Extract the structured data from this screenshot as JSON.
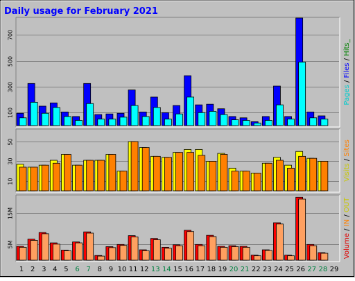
{
  "chart_data": {
    "type": "bar",
    "title": "Daily usage for February 2021",
    "colors": {
      "hits": "#00cc00",
      "files": "#0000ff",
      "pages": "#00ffff",
      "visits": "#ffff00",
      "sites": "#ff8000",
      "kbin": "#ff0000",
      "kbout": "#ffa060",
      "panel": "#c0c0c0",
      "title": "#0000ff",
      "weekend_label": "#008040"
    },
    "categories": [
      "1",
      "2",
      "3",
      "4",
      "5",
      "6",
      "7",
      "8",
      "9",
      "10",
      "11",
      "12",
      "13",
      "14",
      "15",
      "16",
      "17",
      "18",
      "19",
      "20",
      "21",
      "22",
      "23",
      "24",
      "25",
      "26",
      "27",
      "28",
      "29"
    ],
    "weekend_days": [
      "6",
      "7",
      "13",
      "14",
      "20",
      "21",
      "27",
      "28"
    ],
    "panels": [
      {
        "id": "hits",
        "ylim": [
          0,
          830
        ],
        "ticks": [
          {
            "value": 100,
            "label": "100"
          },
          {
            "value": 300,
            "label": "300"
          },
          {
            "value": 500,
            "label": "500"
          },
          {
            "value": 700,
            "label": "700"
          }
        ],
        "legend": [
          {
            "text": "Pages",
            "color": "#00cccc"
          },
          {
            "text": " / ",
            "color": "#000000"
          },
          {
            "text": "Files",
            "color": "#0000ff"
          },
          {
            "text": " / ",
            "color": "#000000"
          },
          {
            "text": "Hits_",
            "color": "#008000"
          }
        ],
        "series": [
          {
            "name": "Files",
            "color": "#0000ff",
            "values": [
              95,
              325,
              150,
              175,
              105,
              70,
              325,
              85,
              90,
              95,
              275,
              105,
              220,
              100,
              155,
              385,
              160,
              165,
              130,
              70,
              60,
              30,
              70,
              305,
              70,
              830,
              105,
              75,
              0
            ]
          },
          {
            "name": "Pages",
            "color": "#00ffff",
            "values": [
              60,
              180,
              95,
              140,
              70,
              40,
              170,
              50,
              50,
              65,
              155,
              70,
              140,
              50,
              90,
              220,
              100,
              110,
              85,
              45,
              40,
              20,
              40,
              160,
              50,
              490,
              60,
              50,
              0
            ]
          }
        ]
      },
      {
        "id": "visits",
        "ylim": [
          0,
          62
        ],
        "ticks": [
          {
            "value": 10,
            "label": "10"
          },
          {
            "value": 30,
            "label": "30"
          },
          {
            "value": 50,
            "label": "50"
          }
        ],
        "legend": [
          {
            "text": "Visits",
            "color": "#c8c800"
          },
          {
            "text": " / ",
            "color": "#000000"
          },
          {
            "text": "Sites",
            "color": "#ff8000"
          }
        ],
        "series": [
          {
            "name": "Visits",
            "color": "#ffff00",
            "values": [
              27,
              24,
              26,
              31,
              37,
              26,
              31,
              31,
              37,
              20,
              50,
              44,
              35,
              34,
              39,
              42,
              42,
              30,
              38,
              23,
              20,
              18,
              28,
              34,
              26,
              40,
              33,
              30,
              0
            ]
          },
          {
            "name": "Sites",
            "color": "#ff8000",
            "values": [
              24,
              24,
              26,
              28,
              37,
              26,
              31,
              31,
              37,
              20,
              50,
              44,
              35,
              34,
              39,
              39,
              36,
              30,
              37,
              20,
              20,
              18,
              28,
              31,
              23,
              35,
              33,
              30,
              0
            ]
          }
        ]
      },
      {
        "id": "kbytes",
        "ylim": [
          0,
          20500000
        ],
        "ticks": [
          {
            "value": 5000000,
            "label": "5M"
          },
          {
            "value": 15000000,
            "label": "15M"
          }
        ],
        "legend": [
          {
            "text": "Volume",
            "color": "#e00000"
          },
          {
            "text": " / ",
            "color": "#000000"
          },
          {
            "text": "IN",
            "color": "#ff8000"
          },
          {
            "text": " / ",
            "color": "#000000"
          },
          {
            "text": "OUT",
            "color": "#c8c800"
          }
        ],
        "series": [
          {
            "name": "Volume",
            "color": "#ff0000",
            "values": [
              4400000,
              6700000,
              8800000,
              5500000,
              3200000,
              5800000,
              9000000,
              1500000,
              4300000,
              5000000,
              7800000,
              3300000,
              6900000,
              4100000,
              4900000,
              9500000,
              5000000,
              7900000,
              4400000,
              4600000,
              4400000,
              1600000,
              3300000,
              11900000,
              1600000,
              20000000,
              5000000,
              2400000,
              0
            ]
          },
          {
            "name": "IN/OUT",
            "color": "#ffa060",
            "values": [
              4100000,
              6300000,
              8400000,
              5100000,
              3000000,
              5500000,
              8600000,
              1300000,
              4000000,
              4700000,
              7400000,
              3000000,
              6500000,
              3800000,
              4600000,
              9100000,
              4600000,
              7500000,
              4100000,
              4300000,
              4100000,
              1400000,
              3100000,
              11500000,
              1400000,
              19400000,
              4600000,
              2200000,
              0
            ]
          }
        ]
      }
    ]
  }
}
